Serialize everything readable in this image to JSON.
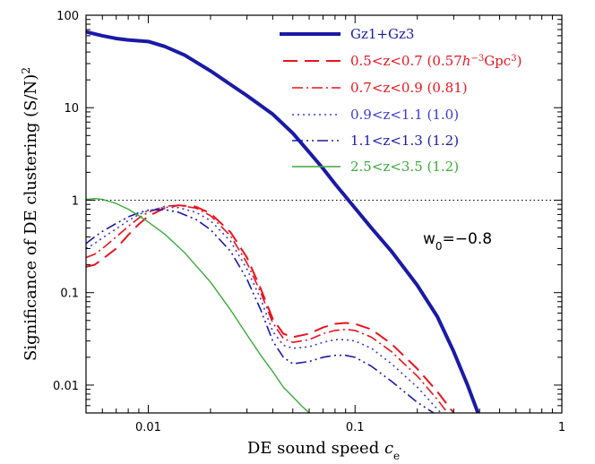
{
  "chart_data": {
    "type": "line",
    "xlabel": "DE sound speed",
    "xlabel_symbol": "c",
    "xlabel_sub": "e",
    "ylabel": "Significance of DE clustering (S/N)",
    "ylabel_sup": "2",
    "xscale": "log",
    "yscale": "log",
    "xlim": [
      0.005,
      1
    ],
    "ylim": [
      0.005,
      100
    ],
    "x_ticks": [
      {
        "value": 0.01,
        "label": "0.01"
      },
      {
        "value": 0.1,
        "label": "0.1"
      },
      {
        "value": 1,
        "label": "1"
      }
    ],
    "y_ticks": [
      {
        "value": 0.01,
        "label": "0.01"
      },
      {
        "value": 0.1,
        "label": "0.1"
      },
      {
        "value": 1,
        "label": "1"
      },
      {
        "value": 10,
        "label": "10"
      },
      {
        "value": 100,
        "label": "100"
      }
    ],
    "reference_line": {
      "y": 1,
      "style": "dotted",
      "color": "#000000"
    },
    "annotation": {
      "base": "w",
      "sub": "0",
      "text": "=−0.8"
    },
    "legend_placement": "top-right",
    "series": [
      {
        "name": "Gz1+Gz3",
        "color": "#1a1aa6",
        "dash": "solid",
        "width": 4,
        "legend_parts": [
          {
            "t": "Gz1+Gz3"
          }
        ],
        "points": [
          [
            0.005,
            66
          ],
          [
            0.006,
            60
          ],
          [
            0.007,
            56
          ],
          [
            0.008,
            54
          ],
          [
            0.01,
            52
          ],
          [
            0.012,
            46
          ],
          [
            0.015,
            37
          ],
          [
            0.02,
            25
          ],
          [
            0.03,
            13.5
          ],
          [
            0.04,
            8.5
          ],
          [
            0.05,
            5.3
          ],
          [
            0.06,
            3.3
          ],
          [
            0.07,
            2.2
          ],
          [
            0.08,
            1.5
          ],
          [
            0.1,
            0.82
          ],
          [
            0.12,
            0.5
          ],
          [
            0.15,
            0.28
          ],
          [
            0.2,
            0.12
          ],
          [
            0.25,
            0.055
          ],
          [
            0.3,
            0.023
          ],
          [
            0.35,
            0.01
          ],
          [
            0.4,
            0.0045
          ]
        ]
      },
      {
        "name": "0.5<z<0.7 (0.57h^-3Gpc^3)",
        "color": "#e8141e",
        "dash": "16,8",
        "width": 2,
        "legend_parts": [
          {
            "t": "0.5<z<0.7  (0.57"
          },
          {
            "t": "h",
            "i": true
          },
          {
            "t": "−3",
            "sup": true
          },
          {
            "t": "Gpc"
          },
          {
            "t": "3",
            "sup": true
          },
          {
            "t": ")"
          }
        ],
        "points": [
          [
            0.005,
            0.19
          ],
          [
            0.0055,
            0.2
          ],
          [
            0.006,
            0.23
          ],
          [
            0.007,
            0.3
          ],
          [
            0.008,
            0.42
          ],
          [
            0.009,
            0.55
          ],
          [
            0.01,
            0.67
          ],
          [
            0.012,
            0.82
          ],
          [
            0.014,
            0.88
          ],
          [
            0.017,
            0.85
          ],
          [
            0.02,
            0.72
          ],
          [
            0.025,
            0.45
          ],
          [
            0.03,
            0.24
          ],
          [
            0.035,
            0.11
          ],
          [
            0.04,
            0.052
          ],
          [
            0.045,
            0.036
          ],
          [
            0.05,
            0.033
          ],
          [
            0.06,
            0.036
          ],
          [
            0.07,
            0.042
          ],
          [
            0.08,
            0.046
          ],
          [
            0.09,
            0.047
          ],
          [
            0.1,
            0.046
          ],
          [
            0.12,
            0.04
          ],
          [
            0.15,
            0.028
          ],
          [
            0.2,
            0.015
          ],
          [
            0.25,
            0.0085
          ],
          [
            0.3,
            0.005
          ]
        ]
      },
      {
        "name": "0.7<z<0.9 (0.81)",
        "color": "#e8141e",
        "dash": "12,4,2,4",
        "width": 1.6,
        "legend_parts": [
          {
            "t": "0.7<z<0.9  (0.81)"
          }
        ],
        "points": [
          [
            0.005,
            0.24
          ],
          [
            0.0055,
            0.26
          ],
          [
            0.006,
            0.3
          ],
          [
            0.007,
            0.4
          ],
          [
            0.008,
            0.52
          ],
          [
            0.009,
            0.64
          ],
          [
            0.01,
            0.74
          ],
          [
            0.012,
            0.86
          ],
          [
            0.014,
            0.88
          ],
          [
            0.017,
            0.82
          ],
          [
            0.02,
            0.68
          ],
          [
            0.025,
            0.41
          ],
          [
            0.03,
            0.21
          ],
          [
            0.035,
            0.1
          ],
          [
            0.04,
            0.047
          ],
          [
            0.045,
            0.032
          ],
          [
            0.05,
            0.029
          ],
          [
            0.06,
            0.031
          ],
          [
            0.07,
            0.036
          ],
          [
            0.08,
            0.039
          ],
          [
            0.09,
            0.04
          ],
          [
            0.1,
            0.039
          ],
          [
            0.12,
            0.033
          ],
          [
            0.15,
            0.023
          ],
          [
            0.2,
            0.0125
          ],
          [
            0.25,
            0.007
          ],
          [
            0.28,
            0.005
          ]
        ]
      },
      {
        "name": "0.9<z<1.1 (1.0)",
        "color": "#3a3ad6",
        "dash": "2,4",
        "width": 1.6,
        "legend_parts": [
          {
            "t": "0.9<z<1.1  (1.0)"
          }
        ],
        "points": [
          [
            0.005,
            0.3
          ],
          [
            0.0055,
            0.34
          ],
          [
            0.006,
            0.39
          ],
          [
            0.007,
            0.49
          ],
          [
            0.008,
            0.6
          ],
          [
            0.009,
            0.7
          ],
          [
            0.01,
            0.77
          ],
          [
            0.012,
            0.84
          ],
          [
            0.014,
            0.83
          ],
          [
            0.017,
            0.74
          ],
          [
            0.02,
            0.6
          ],
          [
            0.025,
            0.36
          ],
          [
            0.03,
            0.18
          ],
          [
            0.035,
            0.085
          ],
          [
            0.04,
            0.038
          ],
          [
            0.045,
            0.027
          ],
          [
            0.05,
            0.025
          ],
          [
            0.06,
            0.026
          ],
          [
            0.07,
            0.029
          ],
          [
            0.08,
            0.031
          ],
          [
            0.09,
            0.031
          ],
          [
            0.1,
            0.03
          ],
          [
            0.12,
            0.025
          ],
          [
            0.15,
            0.017
          ],
          [
            0.2,
            0.0095
          ],
          [
            0.25,
            0.0055
          ],
          [
            0.26,
            0.005
          ]
        ]
      },
      {
        "name": "1.1<z<1.3 (1.2)",
        "color": "#1a1aa6",
        "dash": "12,4,2,4,2,4",
        "width": 1.6,
        "legend_parts": [
          {
            "t": "1.1<z<1.3  (1.2)"
          }
        ],
        "points": [
          [
            0.005,
            0.34
          ],
          [
            0.0055,
            0.4
          ],
          [
            0.006,
            0.46
          ],
          [
            0.007,
            0.56
          ],
          [
            0.008,
            0.66
          ],
          [
            0.009,
            0.73
          ],
          [
            0.01,
            0.78
          ],
          [
            0.012,
            0.79
          ],
          [
            0.014,
            0.74
          ],
          [
            0.017,
            0.62
          ],
          [
            0.02,
            0.48
          ],
          [
            0.025,
            0.28
          ],
          [
            0.03,
            0.14
          ],
          [
            0.035,
            0.065
          ],
          [
            0.04,
            0.03
          ],
          [
            0.045,
            0.02
          ],
          [
            0.05,
            0.017
          ],
          [
            0.06,
            0.018
          ],
          [
            0.07,
            0.02
          ],
          [
            0.08,
            0.021
          ],
          [
            0.09,
            0.021
          ],
          [
            0.1,
            0.02
          ],
          [
            0.12,
            0.016
          ],
          [
            0.15,
            0.011
          ],
          [
            0.2,
            0.0065
          ],
          [
            0.24,
            0.005
          ]
        ]
      },
      {
        "name": "2.5<z<3.5 (1.2)",
        "color": "#3aaa3a",
        "dash": "solid",
        "width": 1.4,
        "legend_parts": [
          {
            "t": "2.5<z<3.5  (1.2)"
          }
        ],
        "points": [
          [
            0.005,
            1.02
          ],
          [
            0.0055,
            1.04
          ],
          [
            0.006,
            1.02
          ],
          [
            0.007,
            0.92
          ],
          [
            0.008,
            0.8
          ],
          [
            0.009,
            0.68
          ],
          [
            0.01,
            0.58
          ],
          [
            0.012,
            0.43
          ],
          [
            0.015,
            0.27
          ],
          [
            0.02,
            0.13
          ],
          [
            0.025,
            0.065
          ],
          [
            0.03,
            0.035
          ],
          [
            0.035,
            0.021
          ],
          [
            0.04,
            0.014
          ],
          [
            0.045,
            0.0095
          ],
          [
            0.05,
            0.0075
          ],
          [
            0.055,
            0.006
          ],
          [
            0.06,
            0.005
          ]
        ]
      }
    ]
  }
}
